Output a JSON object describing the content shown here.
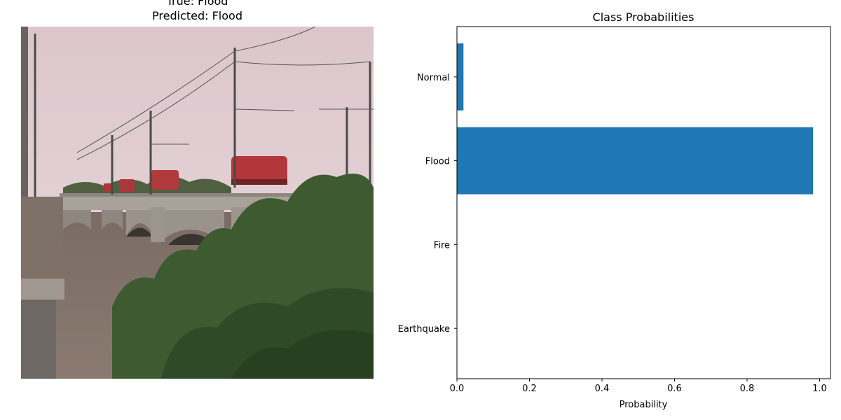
{
  "photo": {
    "title_true": "True: Flood",
    "title_predicted": "Predicted: Flood",
    "description_icon": "train-bridge-flood-photo"
  },
  "chart_data": {
    "type": "bar",
    "orientation": "horizontal",
    "title": "Class Probabilities",
    "xlabel": "Probability",
    "ylabel": "",
    "categories": [
      "Earthquake",
      "Fire",
      "Flood",
      "Normal"
    ],
    "values": [
      0.0,
      0.0,
      0.982,
      0.018
    ],
    "xlim": [
      0,
      1.03
    ],
    "xticks": [
      "0.0",
      "0.2",
      "0.4",
      "0.6",
      "0.8",
      "1.0"
    ],
    "xtick_values": [
      0,
      0.2,
      0.4,
      0.6,
      0.8,
      1.0
    ],
    "bar_color": "#1f77b4",
    "grid": false
  }
}
